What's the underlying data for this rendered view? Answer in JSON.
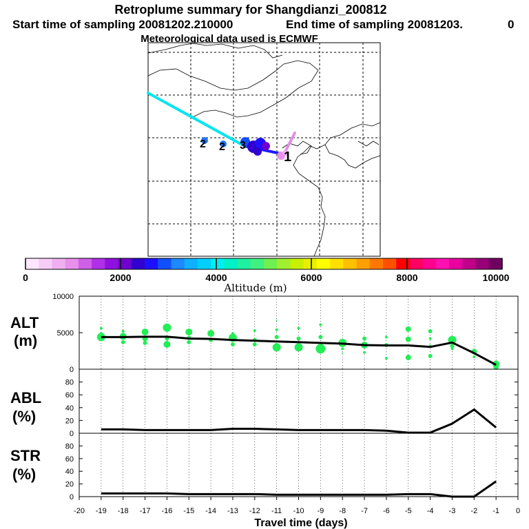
{
  "header": {
    "title": "Retroplume summary for Shangdianzi_200812",
    "start_label": "Start time of sampling 20081202.210000",
    "end_label": "End time of sampling 20081203.",
    "end_value": "0",
    "met_label": "Meteorological data used is ECMWF"
  },
  "map": {
    "end_marker": "1",
    "labels": [
      "2",
      "2",
      "3"
    ],
    "colors": {
      "track": "#00e5ee",
      "near": "#1a1aff",
      "pink": "#e090e8",
      "dots": "#1e78ff"
    }
  },
  "colorbar": {
    "title": "Altitude (m)",
    "tick_labels": [
      "0",
      "2000",
      "4000",
      "6000",
      "8000",
      "10000"
    ],
    "colors": [
      "#fde7fd",
      "#f7cdf7",
      "#f0b0f0",
      "#e890ec",
      "#d060e8",
      "#b030e8",
      "#9010e0",
      "#7000d0",
      "#3000d0",
      "#1e10ff",
      "#1050ff",
      "#1e88ff",
      "#10b0ff",
      "#00d0ff",
      "#00eef0",
      "#00f0c8",
      "#20f0a0",
      "#40f080",
      "#70f050",
      "#a0f030",
      "#c8f000",
      "#e8f000",
      "#ffff00",
      "#ffe000",
      "#ffc000",
      "#ffa000",
      "#ff7800",
      "#ff5000",
      "#ff0000",
      "#ff0060",
      "#ff0090",
      "#ff10b0",
      "#e800a0",
      "#c0008a",
      "#980078",
      "#700060"
    ]
  },
  "chart_data": [
    {
      "type": "line",
      "panel": "ALT",
      "ylabel": "ALT (m)",
      "xlabel": "Travel time (days)",
      "x": [
        -19,
        -18,
        -17,
        -16,
        -15,
        -14,
        -13,
        -12,
        -11,
        -10,
        -9,
        -8,
        -7,
        -6,
        -5,
        -4,
        -3,
        -2,
        -1
      ],
      "xlim": [
        -20,
        0
      ],
      "ylim": [
        0,
        10000
      ],
      "yticks": [
        "0",
        "5000",
        "10000"
      ],
      "xtick_labels": [
        "-20",
        "-19",
        "-18",
        "-17",
        "-16",
        "-15",
        "-14",
        "-13",
        "-12",
        "-11",
        "-10",
        "-9",
        "-8",
        "-7",
        "-6",
        "-5",
        "-4",
        "-3",
        "-2",
        "-1",
        "0"
      ],
      "series": [
        {
          "name": "median altitude",
          "values": [
            4400,
            4400,
            4450,
            4450,
            4200,
            4150,
            4000,
            3900,
            3800,
            3700,
            3600,
            3500,
            3300,
            3250,
            3250,
            3050,
            3650,
            2200,
            600
          ]
        }
      ],
      "scatter_color": "#22ee55",
      "scatter": [
        {
          "x": -19,
          "y": 4400,
          "s": 6
        },
        {
          "x": -19,
          "y": 5600,
          "s": 2
        },
        {
          "x": -19,
          "y": 4900,
          "s": 2
        },
        {
          "x": -18,
          "y": 4500,
          "s": 5
        },
        {
          "x": -18,
          "y": 3700,
          "s": 3
        },
        {
          "x": -18,
          "y": 5200,
          "s": 2
        },
        {
          "x": -18,
          "y": 6200,
          "s": 1
        },
        {
          "x": -17,
          "y": 5100,
          "s": 5
        },
        {
          "x": -17,
          "y": 4200,
          "s": 4
        },
        {
          "x": -17,
          "y": 3600,
          "s": 3
        },
        {
          "x": -16,
          "y": 5700,
          "s": 6
        },
        {
          "x": -16,
          "y": 4200,
          "s": 3
        },
        {
          "x": -16,
          "y": 3400,
          "s": 5
        },
        {
          "x": -15,
          "y": 5100,
          "s": 5
        },
        {
          "x": -15,
          "y": 4300,
          "s": 3
        },
        {
          "x": -15,
          "y": 3700,
          "s": 3
        },
        {
          "x": -14,
          "y": 4900,
          "s": 5
        },
        {
          "x": -14,
          "y": 4000,
          "s": 3
        },
        {
          "x": -13,
          "y": 4300,
          "s": 6
        },
        {
          "x": -13,
          "y": 3400,
          "s": 3
        },
        {
          "x": -13,
          "y": 4900,
          "s": 2
        },
        {
          "x": -12,
          "y": 4000,
          "s": 3
        },
        {
          "x": -12,
          "y": 3400,
          "s": 3
        },
        {
          "x": -12,
          "y": 5300,
          "s": 2
        },
        {
          "x": -11,
          "y": 3000,
          "s": 6
        },
        {
          "x": -11,
          "y": 4400,
          "s": 3
        },
        {
          "x": -11,
          "y": 5400,
          "s": 2
        },
        {
          "x": -11,
          "y": 6700,
          "s": 1
        },
        {
          "x": -10,
          "y": 3000,
          "s": 6
        },
        {
          "x": -10,
          "y": 4200,
          "s": 3
        },
        {
          "x": -10,
          "y": 5600,
          "s": 2
        },
        {
          "x": -9,
          "y": 2800,
          "s": 7
        },
        {
          "x": -9,
          "y": 4400,
          "s": 3
        },
        {
          "x": -9,
          "y": 6100,
          "s": 2
        },
        {
          "x": -8,
          "y": 3600,
          "s": 6
        },
        {
          "x": -8,
          "y": 2800,
          "s": 2
        },
        {
          "x": -8,
          "y": 2200,
          "s": 1
        },
        {
          "x": -7,
          "y": 3300,
          "s": 5
        },
        {
          "x": -7,
          "y": 4200,
          "s": 3
        },
        {
          "x": -7,
          "y": 2300,
          "s": 2
        },
        {
          "x": -6,
          "y": 3300,
          "s": 3
        },
        {
          "x": -6,
          "y": 4400,
          "s": 2
        },
        {
          "x": -6,
          "y": 1500,
          "s": 2
        },
        {
          "x": -5,
          "y": 5500,
          "s": 4
        },
        {
          "x": -5,
          "y": 4100,
          "s": 4
        },
        {
          "x": -5,
          "y": 1600,
          "s": 4
        },
        {
          "x": -4,
          "y": 5200,
          "s": 3
        },
        {
          "x": -4,
          "y": 4200,
          "s": 2
        },
        {
          "x": -4,
          "y": 3200,
          "s": 2
        },
        {
          "x": -4,
          "y": 1800,
          "s": 3
        },
        {
          "x": -3,
          "y": 4000,
          "s": 6
        },
        {
          "x": -3,
          "y": 3200,
          "s": 3
        },
        {
          "x": -3,
          "y": 2800,
          "s": 2
        },
        {
          "x": -2,
          "y": 2400,
          "s": 4
        },
        {
          "x": -2,
          "y": 1700,
          "s": 2
        },
        {
          "x": -1,
          "y": 700,
          "s": 5
        },
        {
          "x": -1,
          "y": 300,
          "s": 4
        },
        {
          "x": -1,
          "y": 1000,
          "s": 2
        }
      ]
    },
    {
      "type": "line",
      "panel": "ABL",
      "ylabel": "ABL (%)",
      "x": [
        -19,
        -18,
        -17,
        -16,
        -15,
        -14,
        -13,
        -12,
        -11,
        -10,
        -9,
        -8,
        -7,
        -6,
        -5,
        -4,
        -3,
        -2,
        -1
      ],
      "xlim": [
        -20,
        0
      ],
      "ylim": [
        0,
        100
      ],
      "yticks": [
        "0",
        "20",
        "40",
        "60",
        "80"
      ],
      "series": [
        {
          "name": "ABL fraction",
          "values": [
            6,
            6,
            5,
            5,
            5,
            5,
            7,
            7,
            6,
            5,
            5,
            5,
            5,
            4,
            1,
            1,
            15,
            37,
            9
          ]
        }
      ]
    },
    {
      "type": "line",
      "panel": "STR",
      "ylabel": "STR (%)",
      "x": [
        -19,
        -18,
        -17,
        -16,
        -15,
        -14,
        -13,
        -12,
        -11,
        -10,
        -9,
        -8,
        -7,
        -6,
        -5,
        -4,
        -3,
        -2,
        -1
      ],
      "xlim": [
        -20,
        0
      ],
      "ylim": [
        0,
        100
      ],
      "yticks": [
        "0",
        "20",
        "40",
        "60",
        "80"
      ],
      "series": [
        {
          "name": "stratospheric fraction",
          "values": [
            5,
            5,
            5,
            5,
            4,
            4,
            4,
            4,
            3,
            3,
            3,
            3,
            3,
            3,
            4,
            4,
            0,
            0,
            24
          ]
        }
      ]
    }
  ]
}
